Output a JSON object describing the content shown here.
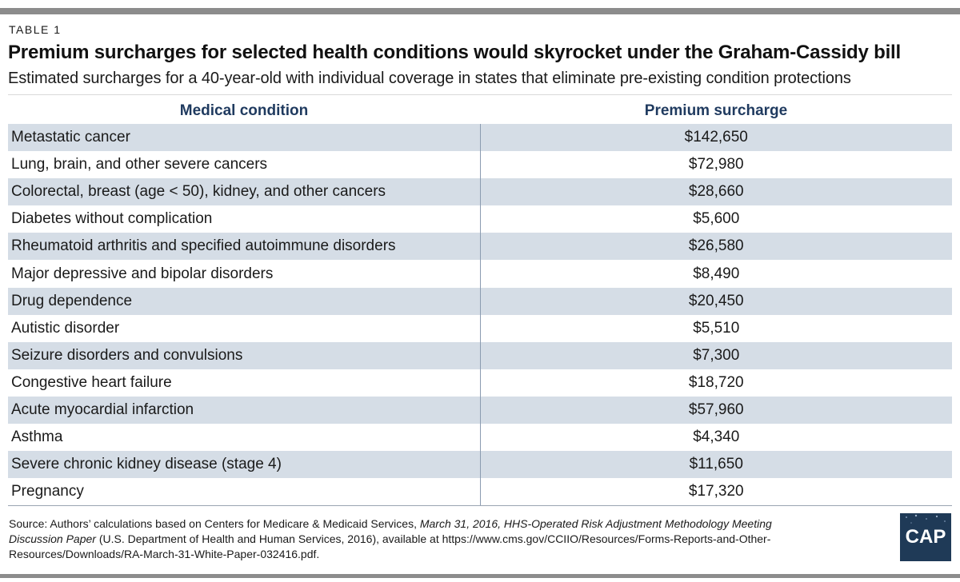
{
  "header": {
    "table_label": "TABLE 1",
    "title": "Premium surcharges for selected health conditions would skyrocket under the Graham-Cassidy bill",
    "subtitle": "Estimated surcharges for a 40-year-old with individual coverage in states that eliminate pre-existing condition protections"
  },
  "table": {
    "columns": [
      "Medical condition",
      "Premium surcharge"
    ],
    "rows": [
      {
        "condition": "Metastatic cancer",
        "surcharge": "$142,650"
      },
      {
        "condition": "Lung, brain, and other severe cancers",
        "surcharge": "$72,980"
      },
      {
        "condition": "Colorectal, breast (age < 50), kidney, and other cancers",
        "surcharge": "$28,660"
      },
      {
        "condition": "Diabetes without complication",
        "surcharge": "$5,600"
      },
      {
        "condition": "Rheumatoid arthritis and specified autoimmune disorders",
        "surcharge": "$26,580"
      },
      {
        "condition": "Major depressive and bipolar disorders",
        "surcharge": "$8,490"
      },
      {
        "condition": "Drug dependence",
        "surcharge": "$20,450"
      },
      {
        "condition": "Autistic disorder",
        "surcharge": "$5,510"
      },
      {
        "condition": "Seizure disorders and convulsions",
        "surcharge": "$7,300"
      },
      {
        "condition": "Congestive heart failure",
        "surcharge": "$18,720"
      },
      {
        "condition": "Acute myocardial infarction",
        "surcharge": "$57,960"
      },
      {
        "condition": "Asthma",
        "surcharge": "$4,340"
      },
      {
        "condition": "Severe chronic kidney disease (stage 4)",
        "surcharge": "$11,650"
      },
      {
        "condition": "Pregnancy",
        "surcharge": "$17,320"
      }
    ]
  },
  "footer": {
    "source_prefix": "Source: Authors’ calculations based on Centers for Medicare & Medicaid Services, ",
    "source_italic": "March 31, 2016, HHS-Operated Risk Adjustment Methodology Meeting Discussion Paper",
    "source_suffix": " (U.S. Department of Health and Human Services, 2016), available at https://www.cms.gov/CCIIO/Resources/Forms-Reports-and-Other-Resources/Downloads/RA-March-31-White-Paper-032416.pdf.",
    "logo_text": "CAP"
  },
  "colors": {
    "band": "#d5dde6",
    "header_text": "#1f3a5f",
    "logo_bg": "#1f3a57",
    "rule": "#8c8c8c"
  }
}
